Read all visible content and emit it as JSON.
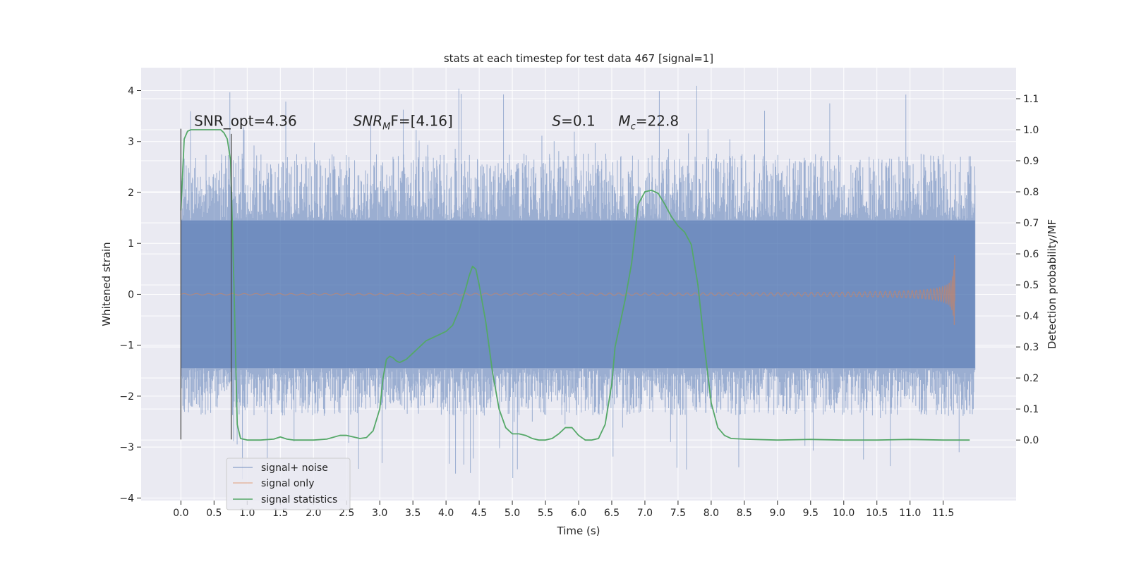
{
  "chart_data": {
    "type": "line",
    "title": "stats at each timestep for test data 467 [signal=1]",
    "xlabel": "Time (s)",
    "ylabel": "Whitened strain",
    "y2label": "Detection probability/MF",
    "xlim": [
      -0.6,
      12.6
    ],
    "ylim": [
      -4.05,
      4.45
    ],
    "y2lim": [
      -0.195,
      1.2
    ],
    "x_ticks": [
      0.0,
      0.5,
      1.0,
      1.5,
      2.0,
      2.5,
      3.0,
      3.5,
      4.0,
      4.5,
      5.0,
      5.5,
      6.0,
      6.5,
      7.0,
      7.5,
      8.0,
      8.5,
      9.0,
      9.5,
      10.0,
      10.5,
      11.0,
      11.5
    ],
    "x_tick_labels": [
      "0.0",
      "0.5",
      "1.0",
      "1.5",
      "2.0",
      "2.5",
      "3.0",
      "3.5",
      "4.0",
      "4.5",
      "5.0",
      "5.5",
      "6.0",
      "6.5",
      "7.0",
      "7.5",
      "8.0",
      "8.5",
      "9.0",
      "9.5",
      "10.0",
      "10.5",
      "11.0",
      "11.5"
    ],
    "y_ticks": [
      -4,
      -3,
      -2,
      -1,
      0,
      1,
      2,
      3,
      4
    ],
    "y_tick_labels": [
      "−4",
      "−3",
      "−2",
      "−1",
      "0",
      "1",
      "2",
      "3",
      "4"
    ],
    "y2_ticks": [
      0.0,
      0.1,
      0.2,
      0.3,
      0.4,
      0.5,
      0.6,
      0.7,
      0.8,
      0.9,
      1.0,
      1.1
    ],
    "y2_tick_labels": [
      "0.0",
      "0.1",
      "0.2",
      "0.3",
      "0.4",
      "0.5",
      "0.6",
      "0.7",
      "0.8",
      "0.9",
      "1.0",
      "1.1"
    ],
    "grid": true,
    "legend_placement": "lower-left",
    "annotations": [
      {
        "prefix": "SNR_opt=4.36",
        "sym": "",
        "sub": "",
        "suffix": "",
        "x": 0.2,
        "y": 3.25
      },
      {
        "prefix": "",
        "sym": "SNR",
        "sub": "M",
        "suffix": "F=[4.16]",
        "x": 2.6,
        "y": 3.25
      },
      {
        "prefix": "",
        "sym": "S",
        "sub": "",
        "suffix": "=0.1",
        "x": 5.6,
        "y": 3.25
      },
      {
        "prefix": "",
        "sym": "M",
        "sub": "c",
        "suffix": "=22.8",
        "x": 6.6,
        "y": 3.25
      }
    ],
    "vlines": [
      {
        "x": 0.0,
        "ymin": -2.85,
        "ymax": 3.25
      },
      {
        "x": 0.76,
        "ymin": -2.85,
        "ymax": 3.15
      }
    ],
    "series": [
      {
        "name": "signal+ noise",
        "color": "#4c72b0",
        "axis": "left",
        "envelope": {
          "x_start": 0.0,
          "x_end": 11.98,
          "core_abs": 1.45,
          "upper_peak": 4.1,
          "lower_peak": -3.7,
          "typical_upper": 2.5,
          "typical_lower": -2.2
        }
      },
      {
        "name": "signal only",
        "color": "#dd8452",
        "axis": "left",
        "chirp": {
          "x_start": 0.0,
          "x_end": 11.68,
          "peak_amplitude": 0.88
        }
      },
      {
        "name": "signal statistics",
        "color": "#55a868",
        "axis": "right",
        "x": [
          0.0,
          0.05,
          0.1,
          0.15,
          0.2,
          0.3,
          0.4,
          0.5,
          0.6,
          0.65,
          0.7,
          0.75,
          0.8,
          0.85,
          0.9,
          1.0,
          1.2,
          1.4,
          1.5,
          1.6,
          1.7,
          1.8,
          2.0,
          2.2,
          2.4,
          2.5,
          2.6,
          2.7,
          2.8,
          2.9,
          3.0,
          3.05,
          3.1,
          3.15,
          3.2,
          3.25,
          3.3,
          3.4,
          3.5,
          3.6,
          3.7,
          3.8,
          3.9,
          4.0,
          4.1,
          4.2,
          4.3,
          4.35,
          4.4,
          4.45,
          4.5,
          4.6,
          4.7,
          4.8,
          4.9,
          5.0,
          5.1,
          5.2,
          5.3,
          5.4,
          5.5,
          5.6,
          5.7,
          5.8,
          5.9,
          6.0,
          6.1,
          6.2,
          6.3,
          6.4,
          6.5,
          6.55,
          6.6,
          6.7,
          6.8,
          6.9,
          7.0,
          7.1,
          7.2,
          7.3,
          7.4,
          7.5,
          7.6,
          7.7,
          7.8,
          7.9,
          8.0,
          8.1,
          8.2,
          8.3,
          8.5,
          9.0,
          9.5,
          10.0,
          10.5,
          11.0,
          11.5,
          11.9
        ],
        "y": [
          0.74,
          0.97,
          0.995,
          1.0,
          1.0,
          1.0,
          1.0,
          1.0,
          1.0,
          0.99,
          0.97,
          0.9,
          0.5,
          0.05,
          0.005,
          0.0,
          0.0,
          0.003,
          0.01,
          0.003,
          0.0,
          0.0,
          0.0,
          0.003,
          0.015,
          0.015,
          0.01,
          0.005,
          0.008,
          0.03,
          0.1,
          0.2,
          0.26,
          0.27,
          0.265,
          0.255,
          0.25,
          0.26,
          0.28,
          0.3,
          0.32,
          0.33,
          0.34,
          0.35,
          0.37,
          0.42,
          0.49,
          0.53,
          0.56,
          0.55,
          0.5,
          0.38,
          0.22,
          0.1,
          0.04,
          0.02,
          0.02,
          0.015,
          0.005,
          0.0,
          0.0,
          0.005,
          0.02,
          0.04,
          0.04,
          0.015,
          0.0,
          0.0,
          0.005,
          0.05,
          0.18,
          0.3,
          0.35,
          0.45,
          0.57,
          0.76,
          0.8,
          0.805,
          0.795,
          0.76,
          0.72,
          0.69,
          0.67,
          0.63,
          0.5,
          0.3,
          0.12,
          0.04,
          0.015,
          0.005,
          0.003,
          0.0,
          0.002,
          0.0,
          0.0,
          0.002,
          0.0,
          0.0
        ]
      }
    ]
  }
}
